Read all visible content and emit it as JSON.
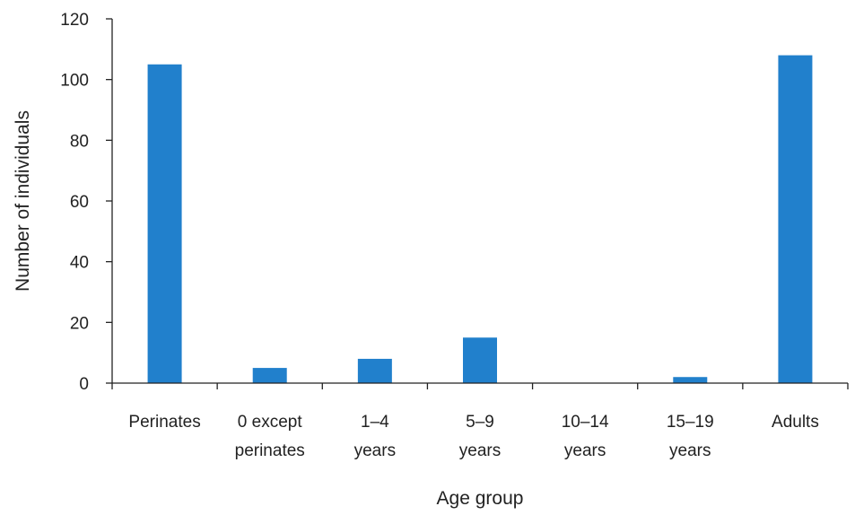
{
  "chart_data": {
    "type": "bar",
    "categories": [
      [
        "Perinates"
      ],
      [
        "0 except",
        "perinates"
      ],
      [
        "1–4",
        "years"
      ],
      [
        "5–9",
        "years"
      ],
      [
        "10–14",
        "years"
      ],
      [
        "15–19",
        "years"
      ],
      [
        "Adults"
      ]
    ],
    "values": [
      105,
      5,
      8,
      15,
      0,
      2,
      108
    ],
    "xlabel": "Age group",
    "ylabel": "Number of individuals",
    "ylim": [
      0,
      120
    ],
    "yticks": [
      0,
      20,
      40,
      60,
      80,
      100,
      120
    ],
    "bar_color": "#2180cc",
    "grid": false,
    "legend": "none"
  }
}
